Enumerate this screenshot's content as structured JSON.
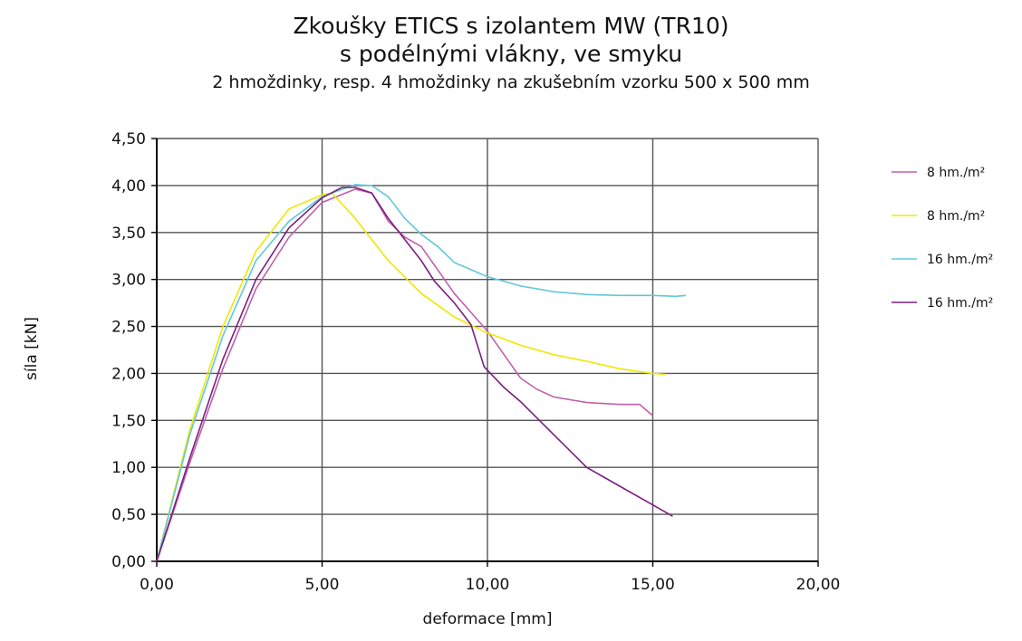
{
  "chart_data": {
    "type": "line",
    "title": "Zkoušky ETICS s izolantem MW (TR10)",
    "title_line2": "s podélnými vlákny, ve smyku",
    "subtitle": "2 hmoždinky, resp. 4 hmoždinky na zkušebním vzorku 500 x 500 mm",
    "xlabel": "deformace [mm]",
    "ylabel": "síla [kN]",
    "xlim": [
      0,
      20
    ],
    "ylim": [
      0,
      4.5
    ],
    "xticks": [
      "0,00",
      "5,00",
      "10,00",
      "15,00",
      "20,00"
    ],
    "yticks": [
      "0,00",
      "0,50",
      "1,00",
      "1,50",
      "2,00",
      "2,50",
      "3,00",
      "3,50",
      "4,00",
      "4,50"
    ],
    "grid": true,
    "legend_position": "right",
    "series": [
      {
        "name": "8 hm./m²",
        "color": "#c060a8",
        "x": [
          0,
          1,
          2,
          3,
          4,
          5,
          6,
          6.5,
          7,
          7.5,
          8,
          8.5,
          9,
          10,
          10.5,
          11,
          11.5,
          12,
          13,
          14,
          14.6,
          15
        ],
        "y": [
          0,
          1.05,
          2.05,
          2.9,
          3.45,
          3.82,
          3.96,
          3.92,
          3.62,
          3.45,
          3.35,
          3.1,
          2.85,
          2.45,
          2.2,
          1.95,
          1.83,
          1.75,
          1.69,
          1.67,
          1.67,
          1.55
        ]
      },
      {
        "name": "8 hm./m²",
        "color": "#f0e800",
        "x": [
          0,
          1,
          2,
          3,
          4,
          5,
          5.3,
          6,
          7,
          8,
          9,
          10,
          11,
          12,
          13,
          14,
          15,
          15.4
        ],
        "y": [
          0,
          1.4,
          2.5,
          3.3,
          3.75,
          3.9,
          3.92,
          3.65,
          3.2,
          2.85,
          2.6,
          2.43,
          2.3,
          2.2,
          2.13,
          2.05,
          2.0,
          1.99
        ]
      },
      {
        "name": "16 hm./m²",
        "color": "#60c8d8",
        "x": [
          0,
          1,
          2,
          3,
          4,
          5,
          6,
          6.5,
          7,
          7.5,
          8,
          8.5,
          9,
          10,
          11,
          12,
          13,
          14,
          15,
          15.7,
          16
        ],
        "y": [
          0,
          1.35,
          2.4,
          3.2,
          3.62,
          3.88,
          4.01,
          4.0,
          3.88,
          3.65,
          3.48,
          3.35,
          3.18,
          3.03,
          2.93,
          2.87,
          2.84,
          2.83,
          2.83,
          2.82,
          2.83
        ]
      },
      {
        "name": "16 hm./m²",
        "color": "#7b1f7f",
        "x": [
          0,
          1,
          2,
          3,
          4,
          5,
          5.6,
          6,
          6.5,
          7,
          8,
          8.4,
          9,
          9.5,
          9.9,
          10.5,
          11,
          12,
          13,
          14,
          15,
          15.6
        ],
        "y": [
          0,
          1.1,
          2.15,
          3.0,
          3.55,
          3.87,
          3.98,
          3.98,
          3.92,
          3.65,
          3.2,
          2.98,
          2.75,
          2.52,
          2.07,
          1.85,
          1.7,
          1.35,
          1.0,
          0.8,
          0.6,
          0.48
        ]
      }
    ]
  }
}
